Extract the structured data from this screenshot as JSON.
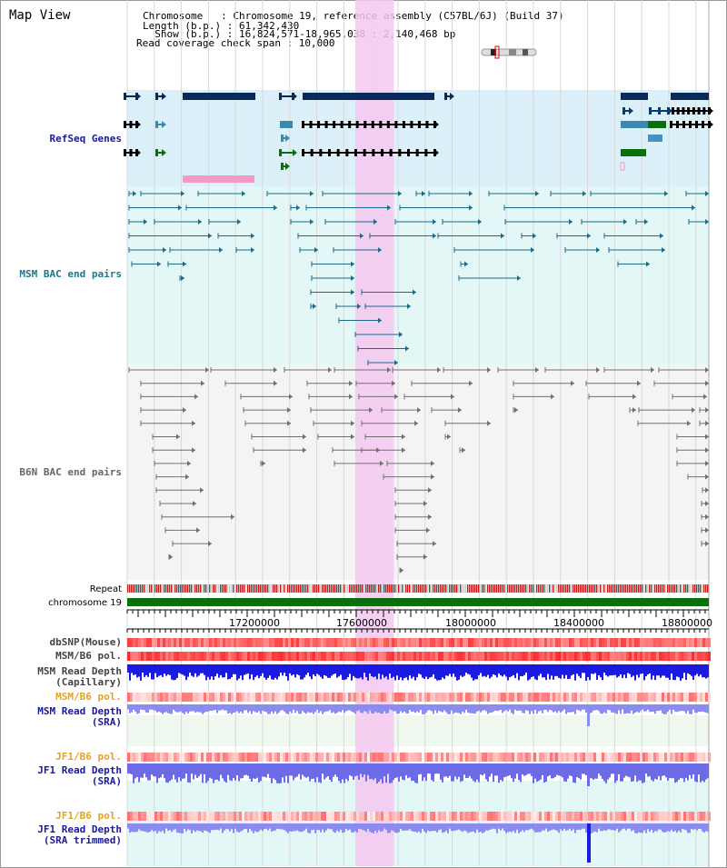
{
  "title": "Map View",
  "info": {
    "chromosome_line": "Chromosome   : Chromosome 19, reference assembly (C57BL/6J) (Build 37)",
    "length_line": "Length (b.p.) : 61,342,430",
    "show_line": "  Show (b.p.) : 16,824,571-18,965,038 : 2,140,468 bp",
    "coverage_line": "Read coverage check span : 10,000"
  },
  "view": {
    "start": 16824571,
    "end": 18965038,
    "highlight": [
      17664000,
      17806000
    ]
  },
  "colors": {
    "refseq_bg": "#dcf0fa",
    "msm_bac_bg": "#e3f7f7",
    "b6n_bac_bg": "#f4f4f4",
    "highlight": "#f5c8f0",
    "snp": "#f07070",
    "depth_blue": "#1a1ae0",
    "depth_light": "#8c8cf0",
    "label_blue": "#1a1a9a",
    "label_teal": "#1a7a8a",
    "label_orange": "#e8a020",
    "chrom_green": "#0a6e0a"
  },
  "tracks": {
    "refseq": "RefSeq Genes",
    "msm_bac": "MSM BAC end pairs",
    "b6n_bac": "B6N BAC end pairs",
    "repeat": "Repeat",
    "chromosome": "chromosome 19",
    "dbsnp": "dbSNP(Mouse)",
    "msm_b6_pol": "MSM/B6 pol.",
    "msm_depth_cap_1": "MSM Read Depth",
    "msm_depth_cap_2": "(Capillary)",
    "msm_b6_pol_2": "MSM/B6 pol.",
    "msm_depth_sra_1": "MSM Read Depth",
    "msm_depth_sra_2": "(SRA)",
    "jf1_b6_pol": "JF1/B6 pol.",
    "jf1_depth_sra_1": "JF1 Read Depth",
    "jf1_depth_sra_2": "(SRA)",
    "jf1_b6_pol_2": "JF1/B6 pol.",
    "jf1_depth_trim_1": "JF1 Read Depth",
    "jf1_depth_trim_2": "(SRA trimmed)"
  },
  "axis_ticks": [
    "17200000",
    "17600000",
    "18000000",
    "18400000",
    "18800000"
  ]
}
